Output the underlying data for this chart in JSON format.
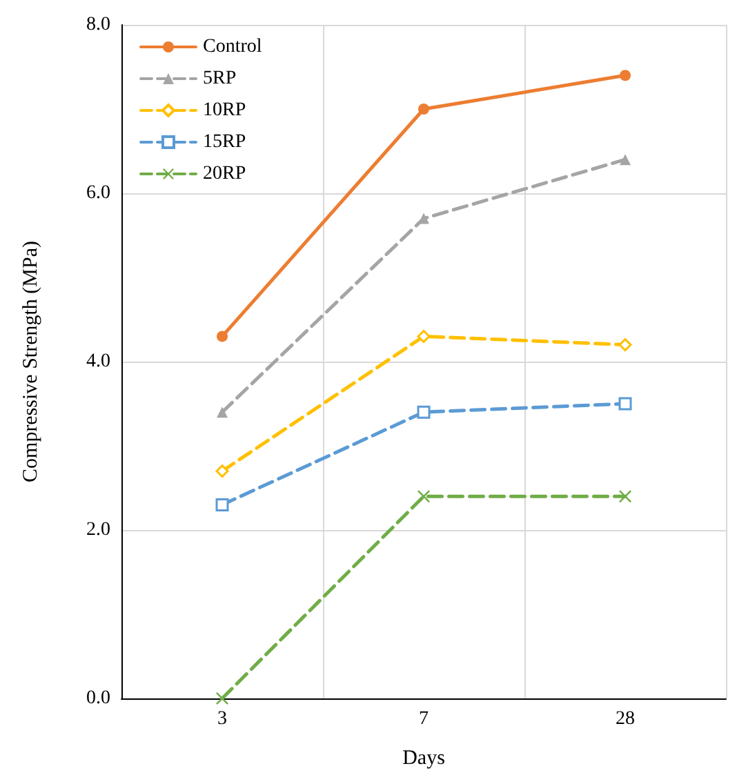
{
  "chart_data": {
    "type": "line",
    "xlabel": "Days",
    "ylabel": "Compressive Strength (MPa)",
    "categories": [
      "3",
      "7",
      "28"
    ],
    "ylim": [
      0,
      8
    ],
    "yticks": [
      {
        "value": 0,
        "label": "0.0"
      },
      {
        "value": 2,
        "label": "2.0"
      },
      {
        "value": 4,
        "label": "4.0"
      },
      {
        "value": 6,
        "label": "6.0"
      },
      {
        "value": 8,
        "label": "8.0"
      }
    ],
    "grid": true,
    "legend": "top left",
    "series": [
      {
        "name": "Control",
        "color": "#ed7d31",
        "values": [
          4.3,
          7.0,
          7.4
        ],
        "marker": "circle",
        "line_style": "solid"
      },
      {
        "name": "5RP",
        "color": "#a5a5a5",
        "values": [
          3.4,
          5.7,
          6.4
        ],
        "marker": "triangle",
        "line_style": "dashed"
      },
      {
        "name": "10RP",
        "color": "#ffc000",
        "values": [
          2.7,
          4.3,
          4.2
        ],
        "marker": "diamond",
        "line_style": "dashed"
      },
      {
        "name": "15RP",
        "color": "#5b9bd5",
        "values": [
          2.3,
          3.4,
          3.5
        ],
        "marker": "square",
        "line_style": "dashed"
      },
      {
        "name": "20RP",
        "color": "#70ad47",
        "values": [
          0,
          2.4,
          2.4
        ],
        "marker": "cross",
        "line_style": "dashed"
      }
    ]
  }
}
